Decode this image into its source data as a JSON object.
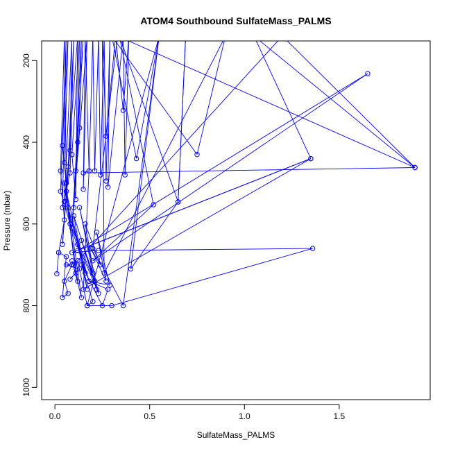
{
  "chart_data": {
    "type": "line",
    "title": "ATOM4 Southbound SulfateMass_PALMS",
    "xlabel": "SulfateMass_PALMS",
    "ylabel": "Pressure (mbar)",
    "xlim": [
      -0.07,
      1.98
    ],
    "ylim": [
      1030,
      152
    ],
    "y_reversed": true,
    "grid": false,
    "legend": "none",
    "x_ticks": [
      0.0,
      0.5,
      1.0,
      1.5
    ],
    "x_tick_labels": [
      "0.0",
      "0.5",
      "1.0",
      "1.5"
    ],
    "y_ticks": [
      200,
      400,
      600,
      800,
      1000
    ],
    "y_tick_labels": [
      "200",
      "400",
      "600",
      "800",
      "1000"
    ],
    "series": [
      {
        "color": "#0000ff",
        "points": [
          [
            0.01,
            722
          ],
          [
            0.02,
            670
          ],
          [
            0.05,
            590
          ],
          [
            0.03,
            470
          ],
          [
            0.05,
            140
          ],
          [
            0.06,
            500
          ],
          [
            0.04,
            408
          ],
          [
            0.07,
            140
          ],
          [
            0.05,
            450
          ],
          [
            0.08,
            600
          ],
          [
            0.03,
            520
          ],
          [
            0.06,
            140
          ],
          [
            0.04,
            560
          ],
          [
            0.08,
            475
          ],
          [
            0.1,
            140
          ],
          [
            0.07,
            460
          ],
          [
            0.05,
            545
          ],
          [
            0.09,
            140
          ],
          [
            0.08,
            420
          ],
          [
            0.04,
            650
          ],
          [
            0.12,
            140
          ],
          [
            0.11,
            540
          ],
          [
            0.09,
            430
          ],
          [
            0.13,
            140
          ],
          [
            0.12,
            400
          ],
          [
            0.1,
            560
          ],
          [
            0.14,
            140
          ],
          [
            0.13,
            365
          ],
          [
            0.11,
            470
          ],
          [
            0.15,
            140
          ],
          [
            0.09,
            610
          ],
          [
            0.17,
            140
          ],
          [
            0.15,
            515
          ],
          [
            0.16,
            140
          ],
          [
            0.18,
            470
          ],
          [
            0.2,
            140
          ],
          [
            0.21,
            470
          ],
          [
            0.23,
            140
          ],
          [
            0.24,
            480
          ],
          [
            0.26,
            140
          ],
          [
            0.27,
            495
          ],
          [
            0.29,
            140
          ],
          [
            0.28,
            510
          ],
          [
            0.36,
            140
          ],
          [
            0.37,
            480
          ],
          [
            0.39,
            140
          ],
          [
            0.36,
            322
          ],
          [
            0.32,
            140
          ],
          [
            0.27,
            385
          ],
          [
            0.25,
            140
          ],
          [
            0.26,
            720
          ],
          [
            0.9,
            140
          ],
          [
            0.75,
            430
          ],
          [
            0.3,
            140
          ],
          [
            0.43,
            440
          ],
          [
            0.55,
            140
          ],
          [
            0.17,
            800
          ],
          [
            0.3,
            800
          ],
          [
            1.36,
            660
          ],
          [
            0.23,
            665
          ],
          [
            0.09,
            670
          ],
          [
            1.35,
            440
          ],
          [
            0.12,
            665
          ],
          [
            1.65,
            232
          ],
          [
            0.2,
            690
          ],
          [
            0.52,
            553
          ],
          [
            0.34,
            140
          ],
          [
            0.65,
            546
          ],
          [
            0.69,
            140
          ],
          [
            0.65,
            546
          ],
          [
            0.4,
            710
          ],
          [
            0.55,
            140
          ],
          [
            0.36,
            800
          ],
          [
            0.2,
            660
          ],
          [
            0.33,
            140
          ],
          [
            1.9,
            462
          ],
          [
            1.05,
            140
          ],
          [
            1.35,
            440
          ],
          [
            0.15,
            760
          ],
          [
            0.18,
            470
          ],
          [
            0.15,
            475
          ],
          [
            1.9,
            462
          ],
          [
            1.2,
            140
          ],
          [
            0.1,
            700
          ],
          [
            0.12,
            690
          ],
          [
            0.17,
            800
          ],
          [
            0.2,
            790
          ],
          [
            0.14,
            700
          ],
          [
            0.25,
            800
          ],
          [
            0.28,
            760
          ],
          [
            0.18,
            740
          ],
          [
            0.29,
            750
          ],
          [
            0.22,
            620
          ],
          [
            0.27,
            740
          ],
          [
            0.19,
            660
          ],
          [
            0.24,
            700
          ],
          [
            0.16,
            600
          ],
          [
            0.22,
            760
          ],
          [
            0.14,
            640
          ],
          [
            0.2,
            720
          ],
          [
            0.13,
            560
          ],
          [
            0.23,
            770
          ],
          [
            0.12,
            650
          ],
          [
            0.17,
            760
          ],
          [
            0.1,
            580
          ],
          [
            0.21,
            740
          ],
          [
            0.08,
            600
          ],
          [
            0.18,
            740
          ],
          [
            0.07,
            560
          ],
          [
            0.16,
            720
          ],
          [
            0.06,
            520
          ],
          [
            0.14,
            780
          ],
          [
            0.09,
            690
          ],
          [
            0.12,
            740
          ],
          [
            0.05,
            500
          ],
          [
            0.11,
            720
          ],
          [
            0.08,
            735
          ],
          [
            0.13,
            710
          ],
          [
            0.06,
            700
          ],
          [
            0.09,
            700
          ],
          [
            0.05,
            740
          ],
          [
            0.07,
            770
          ],
          [
            0.04,
            780
          ],
          [
            0.06,
            680
          ],
          [
            0.02,
            670
          ]
        ]
      }
    ]
  }
}
